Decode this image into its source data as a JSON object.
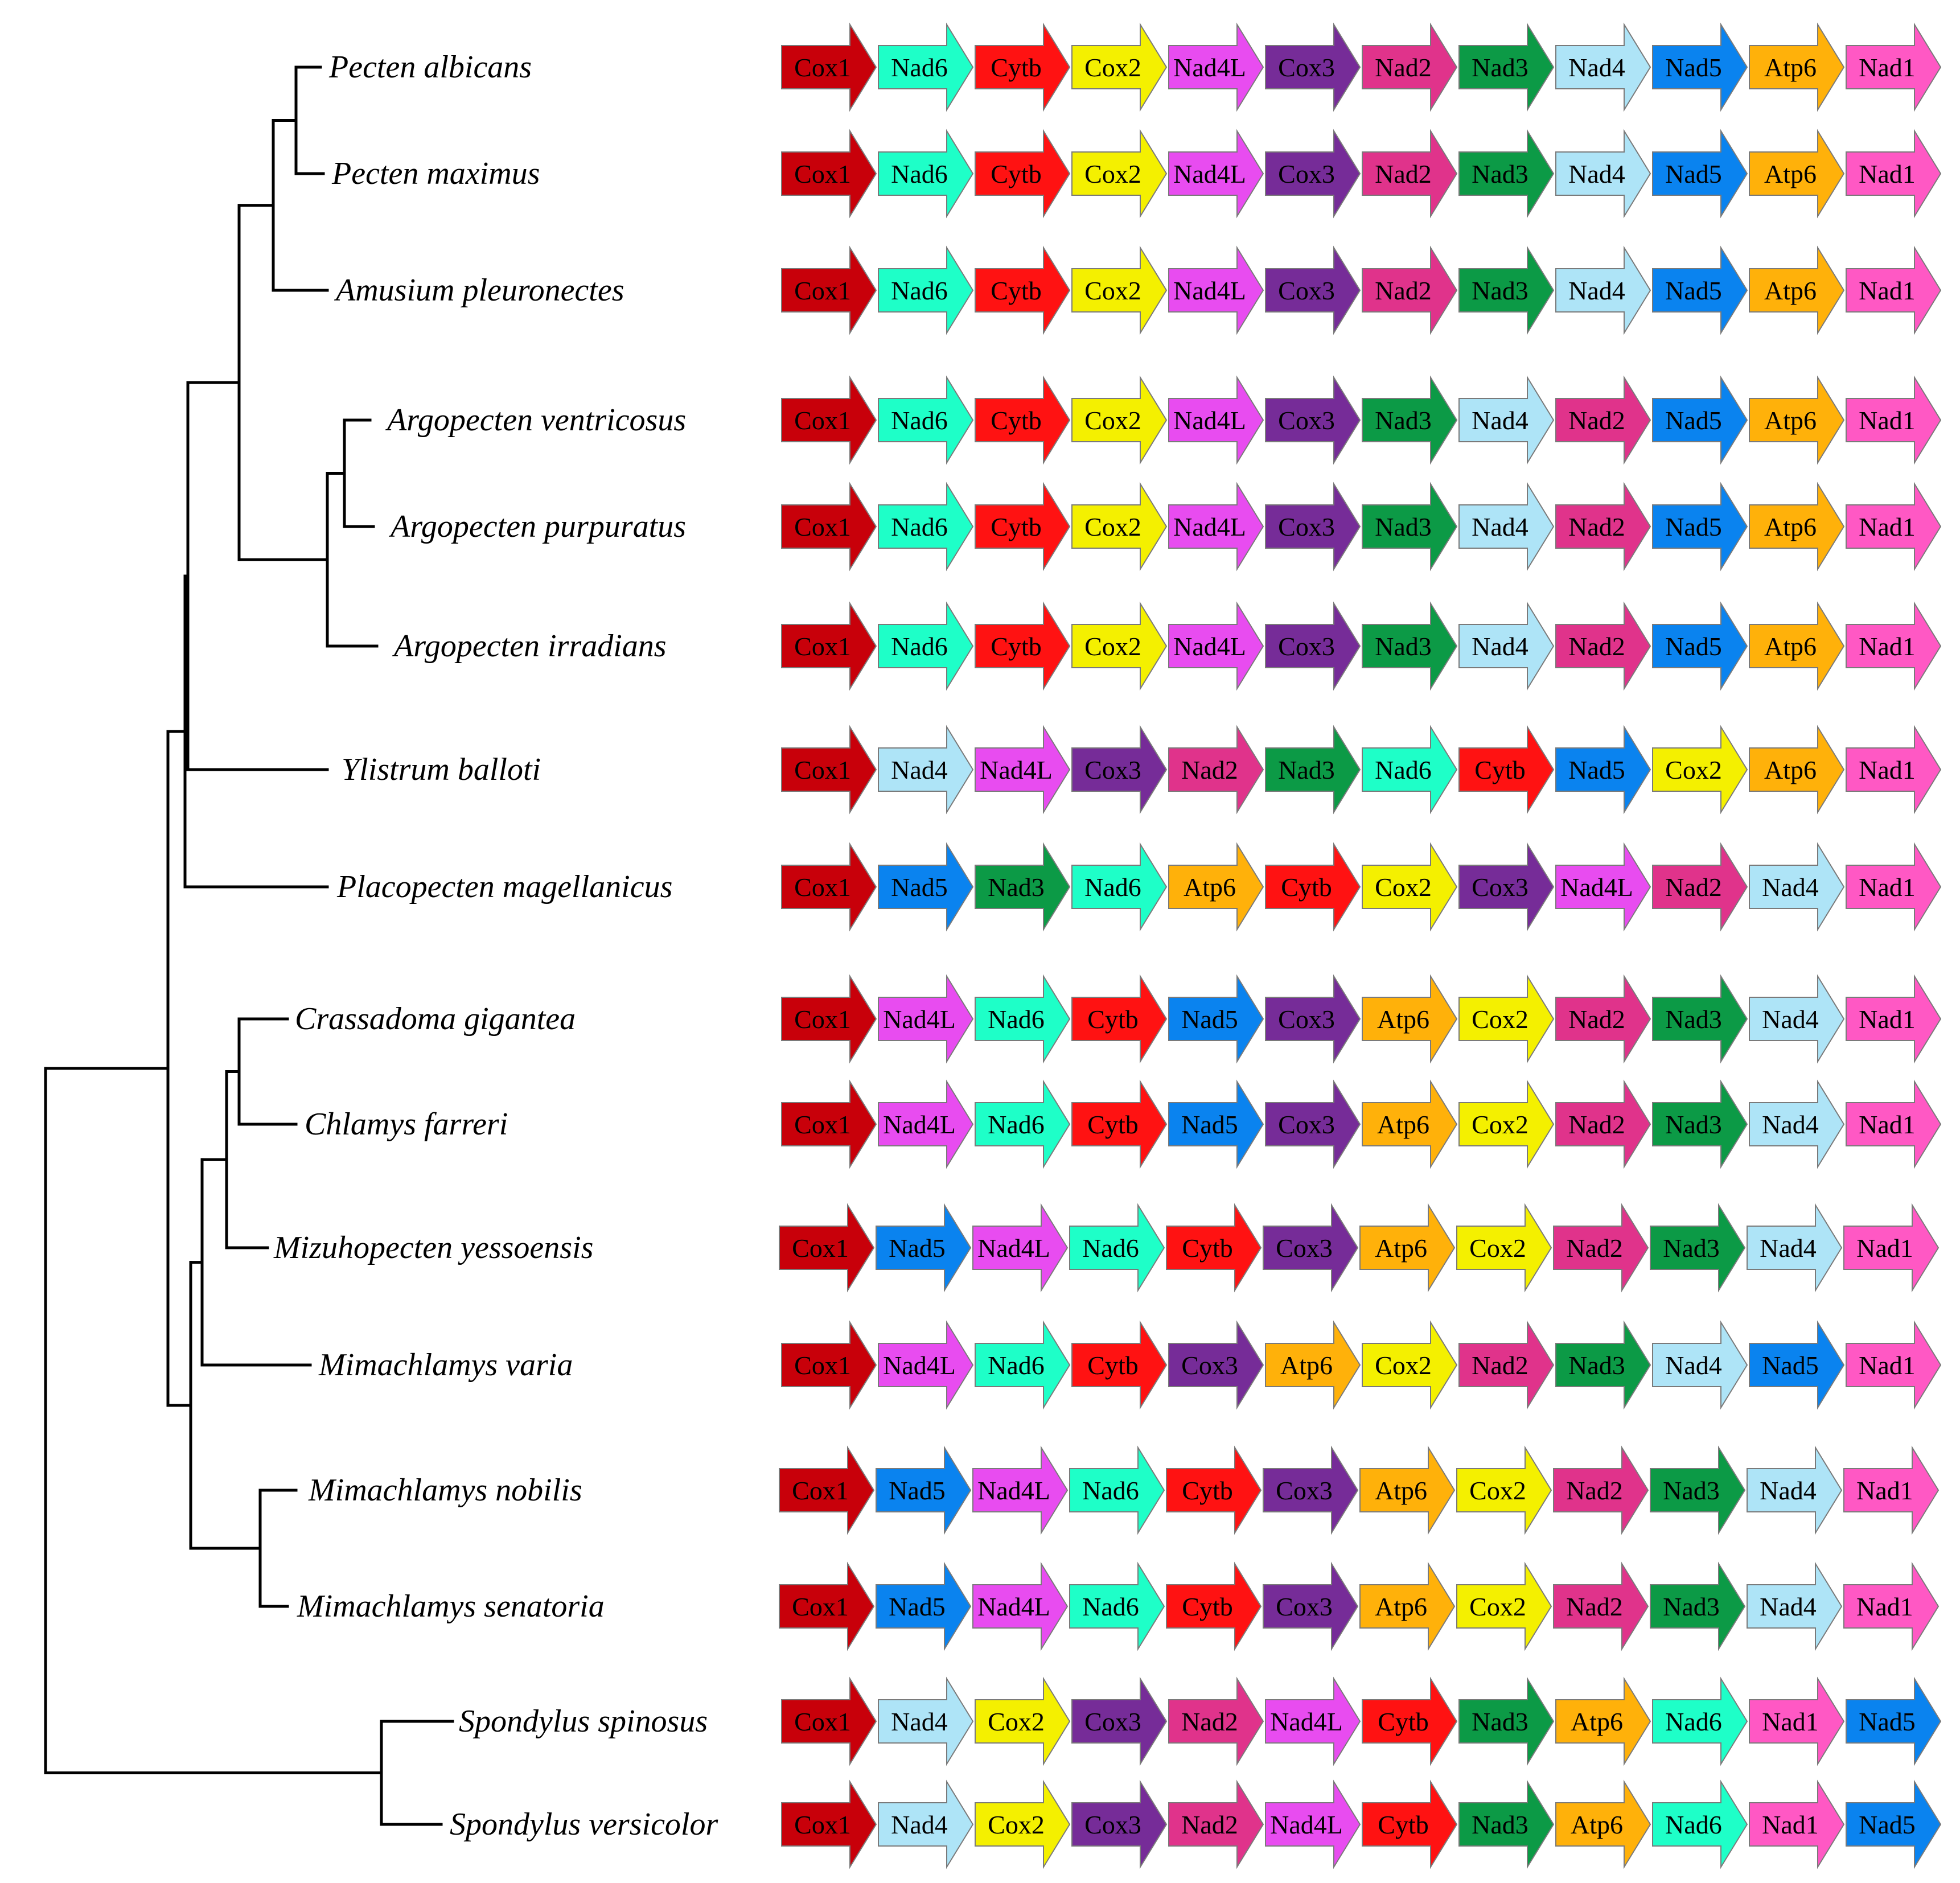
{
  "genes": {
    "Cox1": {
      "color": "#c8000a",
      "text": "#000000"
    },
    "Nad6": {
      "color": "#1effc8",
      "text": "#000000"
    },
    "Cytb": {
      "color": "#ff1212",
      "text": "#000000"
    },
    "Cox2": {
      "color": "#f4f000",
      "text": "#000000"
    },
    "Nad4L": {
      "color": "#e84cf0",
      "text": "#000000"
    },
    "Cox3": {
      "color": "#762c98",
      "text": "#000000"
    },
    "Nad2": {
      "color": "#e0338b",
      "text": "#000000"
    },
    "Nad3": {
      "color": "#0c9a46",
      "text": "#000000"
    },
    "Nad4": {
      "color": "#aee4f7",
      "text": "#000000"
    },
    "Nad5": {
      "color": "#0a83ef",
      "text": "#000000"
    },
    "Atp6": {
      "color": "#ffb10a",
      "text": "#000000"
    },
    "Nad1": {
      "color": "#ff58c4",
      "text": "#000000"
    }
  },
  "species": [
    {
      "name": "Pecten albicans",
      "order": [
        "Cox1",
        "Nad6",
        "Cytb",
        "Cox2",
        "Nad4L",
        "Cox3",
        "Nad2",
        "Nad3",
        "Nad4",
        "Nad5",
        "Atp6",
        "Nad1"
      ]
    },
    {
      "name": "Pecten maximus",
      "order": [
        "Cox1",
        "Nad6",
        "Cytb",
        "Cox2",
        "Nad4L",
        "Cox3",
        "Nad2",
        "Nad3",
        "Nad4",
        "Nad5",
        "Atp6",
        "Nad1"
      ]
    },
    {
      "name": "Amusium pleuronectes",
      "order": [
        "Cox1",
        "Nad6",
        "Cytb",
        "Cox2",
        "Nad4L",
        "Cox3",
        "Nad2",
        "Nad3",
        "Nad4",
        "Nad5",
        "Atp6",
        "Nad1"
      ]
    },
    {
      "name": "Argopecten ventricosus",
      "order": [
        "Cox1",
        "Nad6",
        "Cytb",
        "Cox2",
        "Nad4L",
        "Cox3",
        "Nad3",
        "Nad4",
        "Nad2",
        "Nad5",
        "Atp6",
        "Nad1"
      ]
    },
    {
      "name": "Argopecten purpuratus",
      "order": [
        "Cox1",
        "Nad6",
        "Cytb",
        "Cox2",
        "Nad4L",
        "Cox3",
        "Nad3",
        "Nad4",
        "Nad2",
        "Nad5",
        "Atp6",
        "Nad1"
      ]
    },
    {
      "name": "Argopecten irradians",
      "order": [
        "Cox1",
        "Nad6",
        "Cytb",
        "Cox2",
        "Nad4L",
        "Cox3",
        "Nad3",
        "Nad4",
        "Nad2",
        "Nad5",
        "Atp6",
        "Nad1"
      ]
    },
    {
      "name": "Ylistrum balloti",
      "order": [
        "Cox1",
        "Nad4",
        "Nad4L",
        "Cox3",
        "Nad2",
        "Nad3",
        "Nad6",
        "Cytb",
        "Nad5",
        "Cox2",
        "Atp6",
        "Nad1"
      ]
    },
    {
      "name": "Placopecten magellanicus",
      "order": [
        "Cox1",
        "Nad5",
        "Nad3",
        "Nad6",
        "Atp6",
        "Cytb",
        "Cox2",
        "Cox3",
        "Nad4L",
        "Nad2",
        "Nad4",
        "Nad1"
      ]
    },
    {
      "name": "Crassadoma gigantea",
      "order": [
        "Cox1",
        "Nad4L",
        "Nad6",
        "Cytb",
        "Nad5",
        "Cox3",
        "Atp6",
        "Cox2",
        "Nad2",
        "Nad3",
        "Nad4",
        "Nad1"
      ]
    },
    {
      "name": "Chlamys farreri",
      "order": [
        "Cox1",
        "Nad4L",
        "Nad6",
        "Cytb",
        "Nad5",
        "Cox3",
        "Atp6",
        "Cox2",
        "Nad2",
        "Nad3",
        "Nad4",
        "Nad1"
      ]
    },
    {
      "name": "Mizuhopecten yessoensis",
      "order": [
        "Cox1",
        "Nad5",
        "Nad4L",
        "Nad6",
        "Cytb",
        "Cox3",
        "Atp6",
        "Cox2",
        "Nad2",
        "Nad3",
        "Nad4",
        "Nad1"
      ]
    },
    {
      "name": "Mimachlamys varia",
      "order": [
        "Cox1",
        "Nad4L",
        "Nad6",
        "Cytb",
        "Cox3",
        "Atp6",
        "Cox2",
        "Nad2",
        "Nad3",
        "Nad4",
        "Nad5",
        "Nad1"
      ]
    },
    {
      "name": "Mimachlamys nobilis",
      "order": [
        "Cox1",
        "Nad5",
        "Nad4L",
        "Nad6",
        "Cytb",
        "Cox3",
        "Atp6",
        "Cox2",
        "Nad2",
        "Nad3",
        "Nad4",
        "Nad1"
      ]
    },
    {
      "name": "Mimachlamys senatoria",
      "order": [
        "Cox1",
        "Nad5",
        "Nad4L",
        "Nad6",
        "Cytb",
        "Cox3",
        "Atp6",
        "Cox2",
        "Nad2",
        "Nad3",
        "Nad4",
        "Nad1"
      ]
    },
    {
      "name": "Spondylus spinosus",
      "order": [
        "Cox1",
        "Nad4",
        "Cox2",
        "Cox3",
        "Nad2",
        "Nad4L",
        "Cytb",
        "Nad3",
        "Atp6",
        "Nad6",
        "Nad1",
        "Nad5"
      ]
    },
    {
      "name": "Spondylus versicolor",
      "order": [
        "Cox1",
        "Nad4",
        "Cox2",
        "Cox3",
        "Nad2",
        "Nad4L",
        "Cytb",
        "Nad3",
        "Atp6",
        "Nad6",
        "Nad1",
        "Nad5"
      ]
    }
  ],
  "tree": {
    "children": [
      {
        "children": [
          {
            "children": [
              {
                "children": [
                  {
                    "children": [
                      {
                        "children": [
                          {
                            "leaf": 0
                          },
                          {
                            "leaf": 1
                          }
                        ]
                      },
                      {
                        "leaf": 2
                      }
                    ]
                  },
                  {
                    "children": [
                      {
                        "children": [
                          {
                            "leaf": 3
                          },
                          {
                            "leaf": 4
                          }
                        ]
                      },
                      {
                        "leaf": 5
                      }
                    ]
                  }
                ]
              },
              {
                "leaf": 6
              }
            ]
          },
          {
            "leaf": 7
          }
        ]
      },
      {
        "children": [
          {
            "children": [
              {
                "children": [
                  {
                    "children": [
                      {
                        "leaf": 8
                      },
                      {
                        "leaf": 9
                      }
                    ]
                  },
                  {
                    "leaf": 10
                  }
                ]
              },
              {
                "leaf": 11
              }
            ]
          },
          {
            "children": [
              {
                "leaf": 12
              },
              {
                "leaf": 13
              }
            ]
          }
        ]
      }
    ],
    "outgroup": {
      "children": [
        {
          "leaf": 14
        },
        {
          "leaf": 15
        }
      ]
    }
  }
}
